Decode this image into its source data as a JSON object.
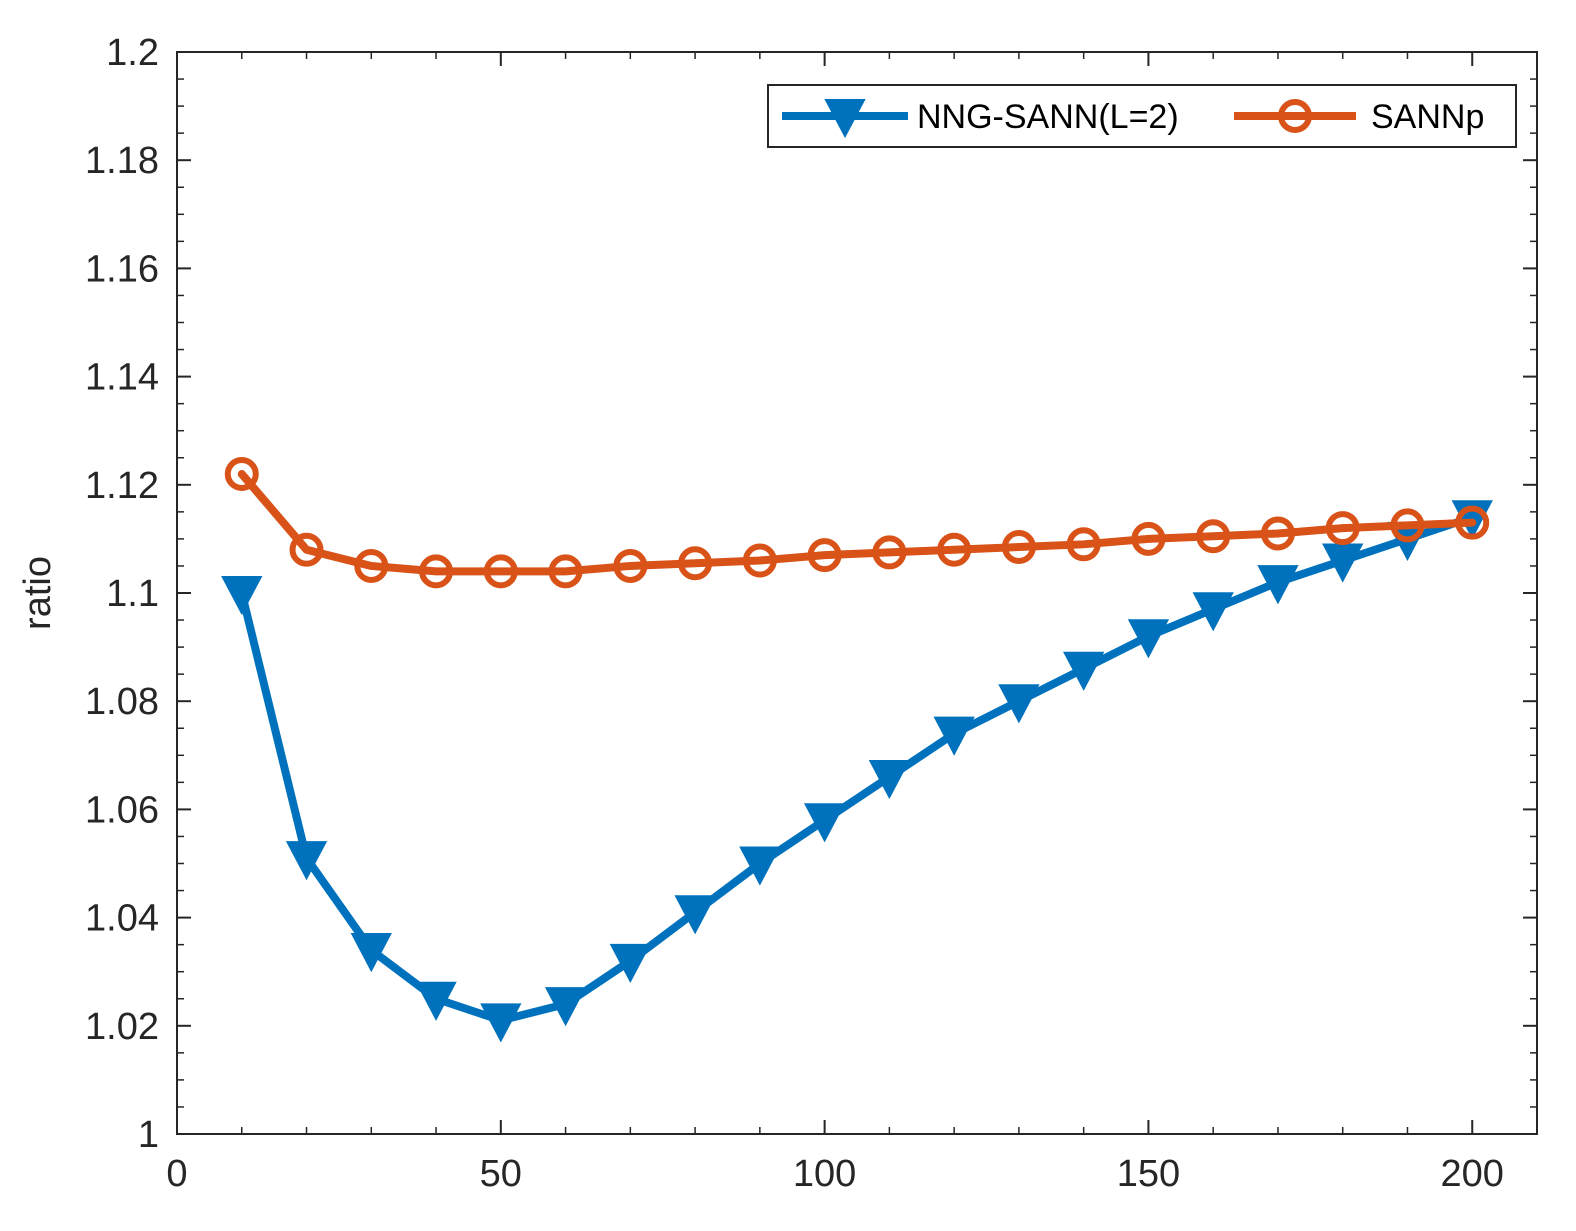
{
  "chart_data": {
    "type": "line",
    "title": "",
    "xlabel": "",
    "ylabel": "ratio",
    "xlim": [
      0,
      210
    ],
    "ylim": [
      1,
      1.2
    ],
    "xticks": [
      0,
      50,
      100,
      150,
      200
    ],
    "xtick_labels": [
      "0",
      "50",
      "100",
      "150",
      "200"
    ],
    "yticks": [
      1,
      1.02,
      1.04,
      1.06,
      1.08,
      1.1,
      1.12,
      1.14,
      1.16,
      1.18,
      1.2
    ],
    "ytick_labels": [
      "1",
      "1.02",
      "1.04",
      "1.06",
      "1.08",
      "1.1",
      "1.12",
      "1.14",
      "1.16",
      "1.18",
      "1.2"
    ],
    "grid": false,
    "legend_position": "top-right",
    "x": [
      10,
      20,
      30,
      40,
      50,
      60,
      70,
      80,
      90,
      100,
      110,
      120,
      130,
      140,
      150,
      160,
      170,
      180,
      190,
      200
    ],
    "series": [
      {
        "name": "NNG-SANN(L=2)",
        "color": "#0072BD",
        "marker": "triangle-down",
        "values": [
          1.1,
          1.051,
          1.034,
          1.025,
          1.021,
          1.024,
          1.032,
          1.041,
          1.05,
          1.058,
          1.066,
          1.074,
          1.08,
          1.086,
          1.092,
          1.097,
          1.102,
          1.106,
          1.11,
          1.114
        ]
      },
      {
        "name": "SANNp",
        "color": "#D95319",
        "marker": "circle",
        "values": [
          1.122,
          1.108,
          1.105,
          1.104,
          1.104,
          1.104,
          1.105,
          1.1055,
          1.106,
          1.107,
          1.1075,
          1.108,
          1.1085,
          1.109,
          1.11,
          1.1105,
          1.111,
          1.112,
          1.1125,
          1.113
        ]
      }
    ]
  }
}
